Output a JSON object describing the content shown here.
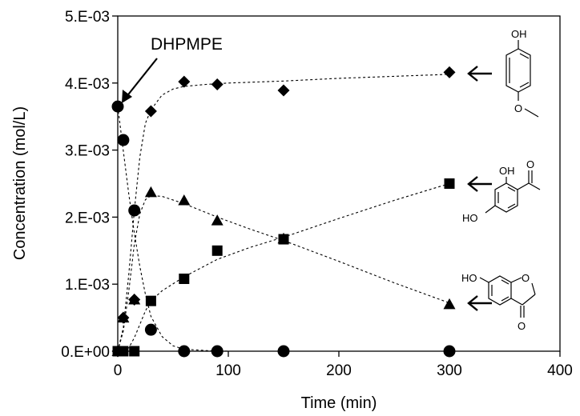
{
  "chart_data": {
    "type": "scatter",
    "xlabel": "Time (min)",
    "ylabel": "Concentration (mol/L)",
    "xlim": [
      0,
      400
    ],
    "ylim": [
      0,
      0.005
    ],
    "x_ticks": [
      0,
      100,
      200,
      300,
      400
    ],
    "x_tick_labels": [
      "0",
      "100",
      "200",
      "300",
      "400"
    ],
    "y_ticks": [
      0,
      0.001,
      0.002,
      0.003,
      0.004,
      0.005
    ],
    "y_tick_labels": [
      "0.E+00",
      "1.E-03",
      "2.E-03",
      "3.E-03",
      "4.E-03",
      "5.E-03"
    ],
    "grid": false,
    "legend": "none",
    "series": [
      {
        "marker": "circle",
        "x": [
          0,
          5,
          15,
          30,
          60,
          90,
          150,
          300
        ],
        "y": [
          0.00365,
          0.00315,
          0.0021,
          0.00032,
          0.0,
          0.0,
          0.0,
          0.0
        ],
        "fit": {
          "x": [
            0,
            5,
            10,
            15,
            20,
            25,
            30,
            40,
            50,
            60,
            80,
            100,
            150,
            200,
            300
          ],
          "y": [
            0.00365,
            0.00299,
            0.00234,
            0.00176,
            0.00126,
            0.00085,
            0.00052,
            0.00022,
            8e-05,
            3e-05,
            1e-05,
            0.0,
            0.0,
            0.0,
            0.0
          ]
        }
      },
      {
        "marker": "diamond",
        "x": [
          0,
          5,
          15,
          30,
          60,
          90,
          150,
          300
        ],
        "y": [
          0.0,
          0.0005,
          0.00077,
          0.00358,
          0.00402,
          0.00398,
          0.00389,
          0.00416
        ],
        "fit": {
          "x": [
            0,
            5,
            10,
            15,
            20,
            25,
            30,
            40,
            50,
            60,
            80,
            100,
            150,
            200,
            250,
            300
          ],
          "y": [
            0.0,
            0.00035,
            0.00115,
            0.0021,
            0.0029,
            0.0034,
            0.0036,
            0.00382,
            0.00391,
            0.00395,
            0.00398,
            0.004,
            0.00403,
            0.00407,
            0.0041,
            0.00413
          ]
        }
      },
      {
        "marker": "triangle",
        "x": [
          0,
          5,
          15,
          30,
          60,
          90,
          150,
          300
        ],
        "y": [
          0.0,
          0.0005,
          0.00077,
          0.00237,
          0.00225,
          0.00195,
          0.00168,
          0.0007
        ],
        "fit": {
          "x": [
            0,
            5,
            10,
            15,
            20,
            25,
            30,
            40,
            60,
            90,
            120,
            150,
            200,
            250,
            300
          ],
          "y": [
            0.0,
            0.0003,
            0.0009,
            0.0016,
            0.00205,
            0.00226,
            0.00232,
            0.00231,
            0.0022,
            0.002,
            0.00182,
            0.00165,
            0.00134,
            0.00102,
            0.00072
          ]
        }
      },
      {
        "marker": "square",
        "x": [
          0,
          5,
          15,
          30,
          60,
          90,
          150,
          300
        ],
        "y": [
          0.0,
          0.0,
          0.0,
          0.00075,
          0.00108,
          0.0015,
          0.00167,
          0.0025
        ],
        "fit": {
          "x": [
            0,
            10,
            15,
            20,
            25,
            30,
            40,
            60,
            90,
            120,
            150,
            200,
            250,
            300
          ],
          "y": [
            0.0,
            5e-05,
            0.0002,
            0.0004,
            0.0006,
            0.00075,
            0.0009,
            0.00111,
            0.00137,
            0.00155,
            0.0017,
            0.00198,
            0.00225,
            0.0025
          ]
        }
      }
    ]
  },
  "annotations": {
    "dhpmpe": "DHPMPE"
  },
  "molecules": {
    "oh": "OH",
    "ho": "HO",
    "o": "O"
  }
}
